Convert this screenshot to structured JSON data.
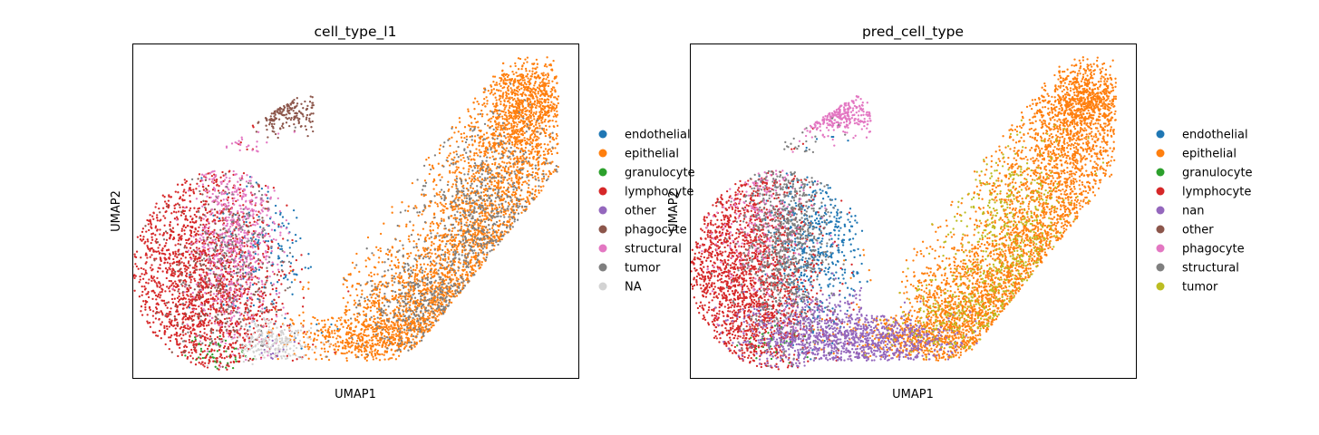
{
  "chart_data": [
    {
      "type": "scatter",
      "title": "cell_type_l1",
      "xlabel": "UMAP1",
      "ylabel": "UMAP2",
      "grid": false,
      "ticks": false,
      "legend_placement": "right, outside axes",
      "series": [
        {
          "name": "endothelial",
          "color": "#1f77b4"
        },
        {
          "name": "epithelial",
          "color": "#ff7f0e"
        },
        {
          "name": "granulocyte",
          "color": "#2ca02c"
        },
        {
          "name": "lymphocyte",
          "color": "#d62728"
        },
        {
          "name": "other",
          "color": "#9467bd"
        },
        {
          "name": "phagocyte",
          "color": "#8c564b"
        },
        {
          "name": "structural",
          "color": "#e377c2"
        },
        {
          "name": "tumor",
          "color": "#7f7f7f"
        },
        {
          "name": "NA",
          "color": "#d3d3d3"
        }
      ]
    },
    {
      "type": "scatter",
      "title": "pred_cell_type",
      "xlabel": "UMAP1",
      "ylabel": "UMAP2",
      "grid": false,
      "ticks": false,
      "legend_placement": "right, outside axes",
      "series": [
        {
          "name": "endothelial",
          "color": "#1f77b4"
        },
        {
          "name": "epithelial",
          "color": "#ff7f0e"
        },
        {
          "name": "granulocyte",
          "color": "#2ca02c"
        },
        {
          "name": "lymphocyte",
          "color": "#d62728"
        },
        {
          "name": "nan",
          "color": "#9467bd"
        },
        {
          "name": "other",
          "color": "#8c564b"
        },
        {
          "name": "phagocyte",
          "color": "#e377c2"
        },
        {
          "name": "structural",
          "color": "#7f7f7f"
        },
        {
          "name": "tumor",
          "color": "#bcbd22"
        }
      ]
    }
  ]
}
